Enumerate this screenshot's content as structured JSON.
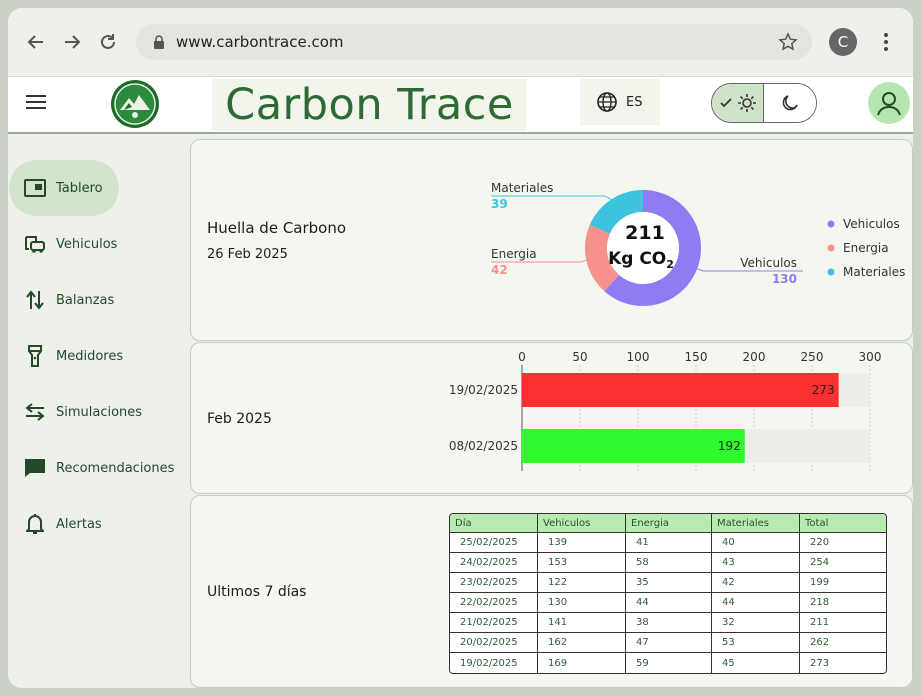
{
  "browser": {
    "url": "www.carbontrace.com",
    "profile_initial": "C"
  },
  "app": {
    "title": "Carbon Trace",
    "language": "ES"
  },
  "sidebar": {
    "items": [
      {
        "label": "Tablero",
        "icon": "dashboard-icon",
        "active": true
      },
      {
        "label": "Vehiculos",
        "icon": "vehicle-icon",
        "active": false
      },
      {
        "label": "Balanzas",
        "icon": "swap-vertical-icon",
        "active": false
      },
      {
        "label": "Medidores",
        "icon": "flashlight-icon",
        "active": false
      },
      {
        "label": "Simulaciones",
        "icon": "swap-horizontal-icon",
        "active": false
      },
      {
        "label": "Recomendaciones",
        "icon": "chat-icon",
        "active": false
      },
      {
        "label": "Alertas",
        "icon": "bell-icon",
        "active": false
      }
    ]
  },
  "footprint": {
    "title": "Huella de Carbono",
    "date": "26 Feb 2025",
    "center_value": "211",
    "center_unit": "Kg CO",
    "center_unit_sub": "2"
  },
  "monthly": {
    "label": "Feb 2025"
  },
  "weekly": {
    "label": "Ultimos 7 días",
    "columns": [
      "Día",
      "Vehiculos",
      "Energia",
      "Materiales",
      "Total"
    ],
    "rows": [
      [
        "25/02/2025",
        "139",
        "41",
        "40",
        "220"
      ],
      [
        "24/02/2025",
        "153",
        "58",
        "43",
        "254"
      ],
      [
        "23/02/2025",
        "122",
        "35",
        "42",
        "199"
      ],
      [
        "22/02/2025",
        "130",
        "44",
        "44",
        "218"
      ],
      [
        "21/02/2025",
        "141",
        "38",
        "32",
        "211"
      ],
      [
        "20/02/2025",
        "162",
        "47",
        "53",
        "262"
      ],
      [
        "19/02/2025",
        "169",
        "59",
        "45",
        "273"
      ]
    ]
  },
  "chart_data": [
    {
      "type": "pie",
      "categories": [
        "Vehiculos",
        "Energia",
        "Materiales"
      ],
      "values": [
        130,
        42,
        39
      ],
      "colors": [
        "#8f7cf4",
        "#f7918c",
        "#3ec3de"
      ],
      "legend": "right"
    },
    {
      "type": "bar",
      "categories": [
        "19/02/2025",
        "08/02/2025"
      ],
      "values": [
        273,
        192
      ],
      "colors": [
        "#fd3031",
        "#2ffb2f"
      ],
      "xlim": [
        0,
        300
      ],
      "xticks": [
        0,
        50,
        100,
        150,
        200,
        250,
        300
      ],
      "orientation": "horizontal"
    }
  ]
}
